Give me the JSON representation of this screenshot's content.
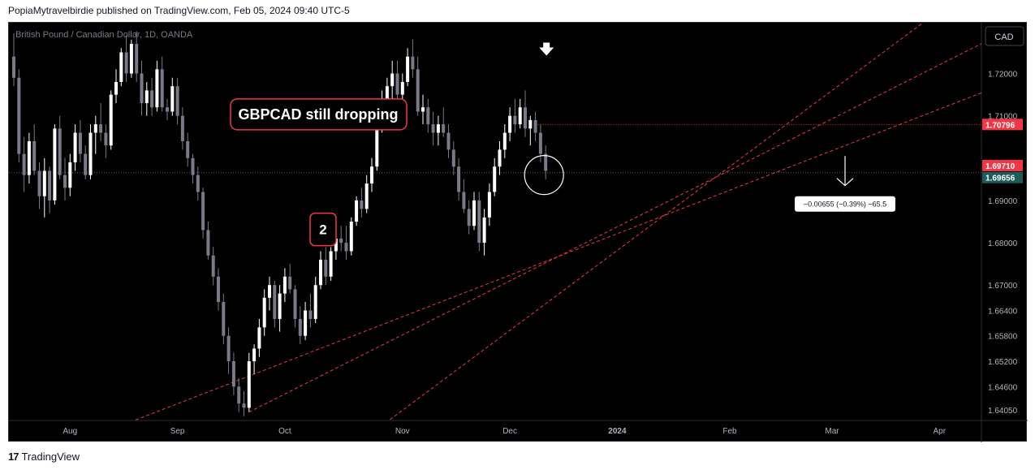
{
  "header": {
    "published_text": "PopiaMytravelbirdie published on TradingView.com, Feb 05, 2024 09:40 UTC-5"
  },
  "footer": {
    "brand": "TradingView",
    "logo_glyph": "17"
  },
  "chart_data": {
    "type": "candlestick",
    "symbol_title": "British Pound / Canadian Dollar, 1D, OANDA",
    "currency_button": "CAD",
    "ylim": [
      1.638,
      1.732
    ],
    "y_ticks": [
      "1.72000",
      "1.71000",
      "1.69000",
      "1.68000",
      "1.67000",
      "1.66400",
      "1.65800",
      "1.65200",
      "1.64600",
      "1.64050"
    ],
    "x_ticks": [
      {
        "label": "Aug",
        "bar": 11
      },
      {
        "label": "Sep",
        "bar": 32
      },
      {
        "label": "Oct",
        "bar": 53
      },
      {
        "label": "Nov",
        "bar": 76
      },
      {
        "label": "Dec",
        "bar": 97
      },
      {
        "label": "2024",
        "bar": 118
      },
      {
        "label": "Feb",
        "bar": 140
      },
      {
        "label": "Mar",
        "bar": 160
      },
      {
        "label": "Apr",
        "bar": 181
      }
    ],
    "price_labels": [
      {
        "text": "1.70796",
        "value": 1.70796,
        "color": "#f23645"
      },
      {
        "text": "1.69710",
        "value": 1.6971,
        "color": "#f23645"
      },
      {
        "text": "1.69656",
        "value": 1.69656,
        "color": "#1e5c5a"
      }
    ],
    "annotations": {
      "headline": "GBPCAD still dropping",
      "wave_label": "2",
      "measure": "−0.00655 (−0.39%) −65.5"
    },
    "colors": {
      "up": "#ffffff",
      "down": "#787b86",
      "trend": "#f23645"
    },
    "candles": [
      [
        1.724,
        1.7295,
        1.717,
        1.719
      ],
      [
        1.719,
        1.721,
        1.699,
        1.701
      ],
      [
        1.701,
        1.705,
        1.692,
        1.696
      ],
      [
        1.696,
        1.706,
        1.694,
        1.704
      ],
      [
        1.704,
        1.708,
        1.696,
        1.697
      ],
      [
        1.697,
        1.699,
        1.688,
        1.691
      ],
      [
        1.691,
        1.7,
        1.686,
        1.697
      ],
      [
        1.697,
        1.698,
        1.687,
        1.69
      ],
      [
        1.69,
        1.708,
        1.689,
        1.707
      ],
      [
        1.707,
        1.71,
        1.695,
        1.696
      ],
      [
        1.696,
        1.7,
        1.69,
        1.693
      ],
      [
        1.693,
        1.701,
        1.691,
        1.699
      ],
      [
        1.699,
        1.708,
        1.697,
        1.706
      ],
      [
        1.706,
        1.709,
        1.699,
        1.701
      ],
      [
        1.701,
        1.703,
        1.695,
        1.696
      ],
      [
        1.696,
        1.708,
        1.695,
        1.706
      ],
      [
        1.706,
        1.71,
        1.701,
        1.708
      ],
      [
        1.708,
        1.713,
        1.704,
        1.706
      ],
      [
        1.706,
        1.708,
        1.7,
        1.703
      ],
      [
        1.703,
        1.716,
        1.702,
        1.715
      ],
      [
        1.715,
        1.721,
        1.713,
        1.718
      ],
      [
        1.718,
        1.726,
        1.717,
        1.725
      ],
      [
        1.725,
        1.729,
        1.718,
        1.72
      ],
      [
        1.72,
        1.728,
        1.719,
        1.727
      ],
      [
        1.727,
        1.73,
        1.718,
        1.72
      ],
      [
        1.72,
        1.723,
        1.71,
        1.713
      ],
      [
        1.713,
        1.718,
        1.71,
        1.716
      ],
      [
        1.716,
        1.719,
        1.71,
        1.712
      ],
      [
        1.712,
        1.723,
        1.711,
        1.721
      ],
      [
        1.721,
        1.724,
        1.711,
        1.712
      ],
      [
        1.712,
        1.714,
        1.709,
        1.711
      ],
      [
        1.711,
        1.719,
        1.71,
        1.717
      ],
      [
        1.717,
        1.719,
        1.708,
        1.71
      ],
      [
        1.71,
        1.712,
        1.702,
        1.704
      ],
      [
        1.704,
        1.706,
        1.698,
        1.7
      ],
      [
        1.7,
        1.701,
        1.694,
        1.696
      ],
      [
        1.696,
        1.698,
        1.69,
        1.692
      ],
      [
        1.692,
        1.693,
        1.681,
        1.683
      ],
      [
        1.683,
        1.685,
        1.676,
        1.677
      ],
      [
        1.677,
        1.679,
        1.67,
        1.672
      ],
      [
        1.672,
        1.674,
        1.664,
        1.666
      ],
      [
        1.666,
        1.668,
        1.656,
        1.658
      ],
      [
        1.658,
        1.66,
        1.649,
        1.652
      ],
      [
        1.652,
        1.654,
        1.644,
        1.646
      ],
      [
        1.646,
        1.648,
        1.64,
        1.642
      ],
      [
        1.642,
        1.645,
        1.639,
        1.641
      ],
      [
        1.641,
        1.654,
        1.64,
        1.652
      ],
      [
        1.652,
        1.656,
        1.649,
        1.655
      ],
      [
        1.655,
        1.662,
        1.653,
        1.66
      ],
      [
        1.66,
        1.669,
        1.658,
        1.667
      ],
      [
        1.667,
        1.672,
        1.664,
        1.67
      ],
      [
        1.67,
        1.671,
        1.66,
        1.662
      ],
      [
        1.662,
        1.67,
        1.659,
        1.668
      ],
      [
        1.668,
        1.674,
        1.666,
        1.672
      ],
      [
        1.672,
        1.675,
        1.668,
        1.669
      ],
      [
        1.669,
        1.67,
        1.66,
        1.662
      ],
      [
        1.662,
        1.665,
        1.656,
        1.658
      ],
      [
        1.658,
        1.666,
        1.657,
        1.664
      ],
      [
        1.664,
        1.668,
        1.66,
        1.662
      ],
      [
        1.662,
        1.672,
        1.661,
        1.67
      ],
      [
        1.67,
        1.678,
        1.669,
        1.676
      ],
      [
        1.676,
        1.679,
        1.67,
        1.672
      ],
      [
        1.672,
        1.679,
        1.671,
        1.678
      ],
      [
        1.678,
        1.683,
        1.676,
        1.681
      ],
      [
        1.681,
        1.684,
        1.678,
        1.68
      ],
      [
        1.68,
        1.684,
        1.676,
        1.678
      ],
      [
        1.678,
        1.686,
        1.677,
        1.685
      ],
      [
        1.685,
        1.691,
        1.684,
        1.69
      ],
      [
        1.69,
        1.693,
        1.686,
        1.688
      ],
      [
        1.688,
        1.696,
        1.687,
        1.694
      ],
      [
        1.694,
        1.7,
        1.692,
        1.698
      ],
      [
        1.698,
        1.71,
        1.697,
        1.708
      ],
      [
        1.708,
        1.716,
        1.706,
        1.713
      ],
      [
        1.713,
        1.719,
        1.71,
        1.717
      ],
      [
        1.717,
        1.723,
        1.714,
        1.72
      ],
      [
        1.72,
        1.723,
        1.712,
        1.715
      ],
      [
        1.715,
        1.72,
        1.711,
        1.718
      ],
      [
        1.718,
        1.726,
        1.717,
        1.724
      ],
      [
        1.724,
        1.728,
        1.719,
        1.721
      ],
      [
        1.721,
        1.724,
        1.71,
        1.711
      ],
      [
        1.711,
        1.715,
        1.708,
        1.712
      ],
      [
        1.712,
        1.714,
        1.706,
        1.708
      ],
      [
        1.708,
        1.711,
        1.703,
        1.706
      ],
      [
        1.706,
        1.71,
        1.703,
        1.708
      ],
      [
        1.708,
        1.712,
        1.705,
        1.706
      ],
      [
        1.706,
        1.708,
        1.7,
        1.702
      ],
      [
        1.702,
        1.704,
        1.696,
        1.698
      ],
      [
        1.698,
        1.7,
        1.69,
        1.692
      ],
      [
        1.692,
        1.695,
        1.687,
        1.688
      ],
      [
        1.688,
        1.69,
        1.682,
        1.684
      ],
      [
        1.684,
        1.692,
        1.683,
        1.69
      ],
      [
        1.69,
        1.692,
        1.678,
        1.68
      ],
      [
        1.68,
        1.688,
        1.677,
        1.686
      ],
      [
        1.686,
        1.694,
        1.684,
        1.692
      ],
      [
        1.692,
        1.7,
        1.691,
        1.698
      ],
      [
        1.698,
        1.704,
        1.696,
        1.702
      ],
      [
        1.702,
        1.708,
        1.7,
        1.706
      ],
      [
        1.706,
        1.712,
        1.704,
        1.71
      ],
      [
        1.71,
        1.714,
        1.706,
        1.708
      ],
      [
        1.708,
        1.714,
        1.707,
        1.712
      ],
      [
        1.712,
        1.716,
        1.705,
        1.707
      ],
      [
        1.707,
        1.71,
        1.703,
        1.709
      ],
      [
        1.709,
        1.711,
        1.704,
        1.706
      ],
      [
        1.706,
        1.708,
        1.699,
        1.701
      ],
      [
        1.701,
        1.703,
        1.695,
        1.697
      ]
    ],
    "trendlines": [
      {
        "from": [
          0,
          1.627
        ],
        "to": [
          199,
          1.72
        ]
      },
      {
        "from": [
          46,
          1.64
        ],
        "to": [
          199,
          1.733
        ]
      },
      {
        "from": [
          70,
          1.635
        ],
        "to": [
          180,
          1.734
        ]
      }
    ]
  }
}
